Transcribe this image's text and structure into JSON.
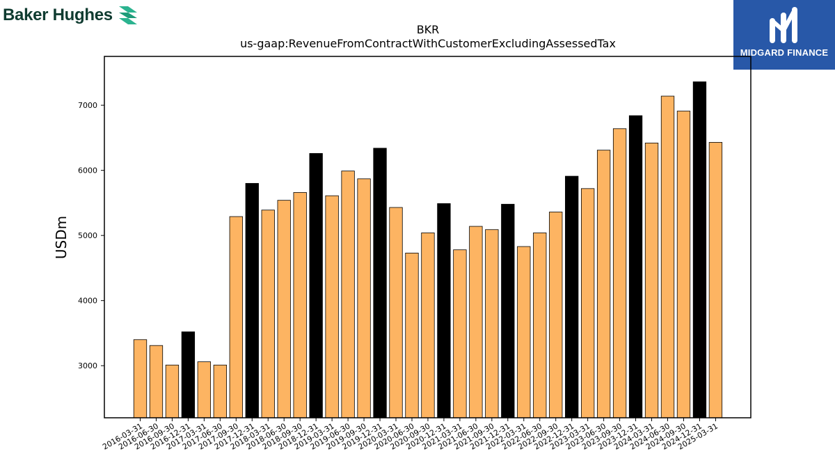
{
  "brand": {
    "left_logo_text": "Baker Hughes",
    "right_logo_text": "MIDGARD FINANCE",
    "right_logo_bg": "#2858a8",
    "left_logo_accent": "#2bb38f"
  },
  "chart_data": {
    "type": "bar",
    "title": "BKR",
    "subtitle": "us-gaap:RevenueFromContractWithCustomerExcludingAssessedTax",
    "xlabel": "",
    "ylabel": "USDm",
    "ylim": [
      2200,
      7750
    ],
    "yticks": [
      3000,
      4000,
      5000,
      6000,
      7000
    ],
    "grid": false,
    "colors": {
      "quarter": "#fdb462",
      "year_end": "#000000",
      "edge": "#000000"
    },
    "categories": [
      "2016-03-31",
      "2016-06-30",
      "2016-09-30",
      "2016-12-31",
      "2017-03-31",
      "2017-06-30",
      "2017-09-30",
      "2017-12-31",
      "2018-03-31",
      "2018-06-30",
      "2018-09-30",
      "2018-12-31",
      "2019-03-31",
      "2019-06-30",
      "2019-09-30",
      "2019-12-31",
      "2020-03-31",
      "2020-06-30",
      "2020-09-30",
      "2020-12-31",
      "2021-03-31",
      "2021-06-30",
      "2021-09-30",
      "2021-12-31",
      "2022-03-31",
      "2022-06-30",
      "2022-09-30",
      "2022-12-31",
      "2023-03-31",
      "2023-06-30",
      "2023-09-30",
      "2023-12-31",
      "2024-03-31",
      "2024-06-30",
      "2024-09-30",
      "2024-12-31",
      "2025-03-31"
    ],
    "values": [
      3400,
      3310,
      3010,
      3520,
      3060,
      3010,
      5290,
      5800,
      5390,
      5540,
      5660,
      6260,
      5610,
      5990,
      5870,
      6340,
      5430,
      4730,
      5040,
      5490,
      4780,
      5140,
      5090,
      5480,
      4830,
      5040,
      5360,
      5910,
      5720,
      6310,
      6640,
      6840,
      6420,
      7140,
      6910,
      7360,
      6430
    ],
    "highlight": [
      false,
      false,
      false,
      true,
      false,
      false,
      false,
      true,
      false,
      false,
      false,
      true,
      false,
      false,
      false,
      true,
      false,
      false,
      false,
      true,
      false,
      false,
      false,
      true,
      false,
      false,
      false,
      true,
      false,
      false,
      false,
      true,
      false,
      false,
      false,
      true,
      false
    ]
  }
}
